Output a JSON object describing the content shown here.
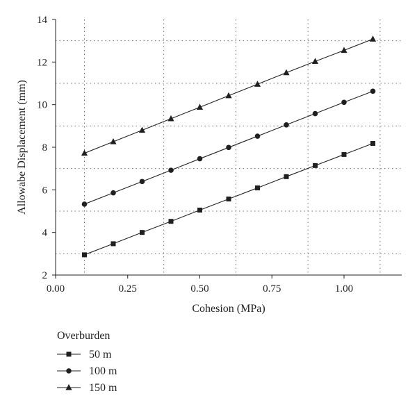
{
  "chart_data": {
    "type": "line",
    "xlabel": "Cohesion (MPa)",
    "ylabel": "Allowabe Displacement (mm)",
    "xlim": [
      0,
      1.2
    ],
    "ylim": [
      2,
      14
    ],
    "x_ticks": [
      0.0,
      0.25,
      0.5,
      0.75,
      1.0
    ],
    "x_tick_labels": [
      "0.00",
      "0.25",
      "0.50",
      "0.75",
      "1.00"
    ],
    "y_ticks": [
      2,
      4,
      6,
      8,
      10,
      12,
      14
    ],
    "y_tick_labels": [
      "2",
      "4",
      "6",
      "8",
      "10",
      "12",
      "14"
    ],
    "grid_x": [
      0.1,
      0.375,
      0.625,
      0.875,
      1.125
    ],
    "grid_y": [
      3,
      5,
      7,
      9,
      11,
      13
    ],
    "grid": "dotted",
    "legend_title": "Overburden",
    "legend_placement": "below",
    "x": [
      0.1,
      0.2,
      0.3,
      0.4,
      0.5,
      0.6,
      0.7,
      0.8,
      0.9,
      1.0,
      1.1
    ],
    "series": [
      {
        "name": "50 m",
        "marker": "square",
        "values": [
          2.95,
          3.47,
          4.0,
          4.52,
          5.05,
          5.57,
          6.09,
          6.62,
          7.14,
          7.66,
          8.18
        ]
      },
      {
        "name": "100 m",
        "marker": "circle",
        "values": [
          5.33,
          5.86,
          6.39,
          6.92,
          7.46,
          7.99,
          8.52,
          9.05,
          9.58,
          10.11,
          10.63
        ]
      },
      {
        "name": "150 m",
        "marker": "triangle",
        "values": [
          7.72,
          8.26,
          8.8,
          9.34,
          9.88,
          10.42,
          10.96,
          11.5,
          12.03,
          12.55,
          13.08
        ]
      }
    ]
  },
  "colors": {
    "ink": "#231f20",
    "grid": "#6d6e71"
  }
}
